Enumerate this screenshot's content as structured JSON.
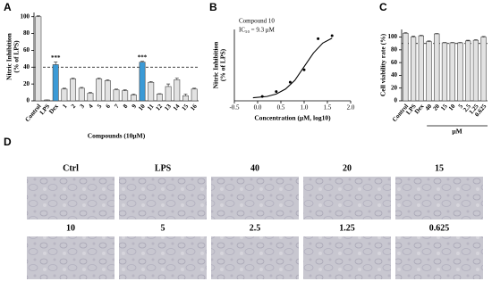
{
  "chart_data": [
    {
      "type": "bar",
      "panel": "A",
      "ylabel": [
        "Nitric Inhibition",
        "(% of LPS)"
      ],
      "xlabel": "Compounds (10μM)",
      "categories": [
        "Control",
        "LPS",
        "Dex",
        "1",
        "2",
        "3",
        "4",
        "5",
        "6",
        "7",
        "8",
        "9",
        "10",
        "11",
        "12",
        "13",
        "14",
        "15",
        "16"
      ],
      "values": [
        100,
        1,
        43,
        14,
        26,
        15,
        9,
        26,
        24,
        13,
        12,
        7,
        46,
        22,
        8,
        17,
        25,
        6,
        14
      ],
      "errors": [
        1,
        0,
        3,
        1,
        1,
        1,
        1,
        1,
        1,
        1,
        1,
        1,
        1,
        1,
        0.5,
        3,
        2,
        2,
        1
      ],
      "color": "#e2e2e2",
      "highlight_color": "#3b9ad6",
      "highlight": [
        "Dex",
        "10"
      ],
      "annotations": [
        {
          "text": "***",
          "category": "Dex"
        },
        {
          "text": "***",
          "category": "10"
        }
      ],
      "reference_line": 40,
      "ylim": [
        0,
        105
      ],
      "yticks": [
        0,
        20,
        40,
        60,
        80,
        100
      ]
    },
    {
      "type": "scatter",
      "panel": "B",
      "ylabel": [
        "Nitric Inhibition",
        "(% of LPS)"
      ],
      "xlabel": "Concentration (μM, log10)",
      "notes": [
        "Compound 10",
        "IC₅₀ = 9.3 μM"
      ],
      "x": [
        0.1,
        0.4,
        0.7,
        1.0,
        1.3,
        1.6
      ],
      "values": [
        2,
        10,
        25,
        45,
        95,
        100
      ],
      "color": "#000000",
      "fit": {
        "x": [
          -0.1,
          0.2,
          0.4,
          0.6,
          0.8,
          1.0,
          1.2,
          1.4,
          1.6
        ],
        "values": [
          0,
          2,
          6,
          14,
          28,
          50,
          72,
          88,
          96
        ]
      },
      "xlim": [
        -0.5,
        2.0
      ],
      "xticks": [
        -0.5,
        {
          "value": 0,
          "label": "0.0"
        },
        0.5,
        {
          "value": 1,
          "label": "1.0"
        },
        1.5,
        {
          "value": 2,
          "label": "2.0"
        }
      ],
      "ylim": [
        -5,
        110
      ]
    },
    {
      "type": "bar",
      "panel": "C",
      "ylabel": "Cell viability rate (%)",
      "categories": [
        "Control",
        "LPS",
        "Dex",
        "40",
        "20",
        "15",
        "10",
        "5",
        "2.5",
        "1.25",
        "0.625"
      ],
      "values": [
        106,
        100,
        102,
        93,
        105,
        91,
        91,
        91,
        94,
        95,
        100
      ],
      "errors": [
        1,
        1.5,
        1,
        1,
        0.5,
        0.5,
        0.5,
        0.5,
        1,
        1,
        1
      ],
      "color": "#e2e2e2",
      "group": {
        "label": "μM",
        "from": "40"
      },
      "reference_line": 90,
      "ylim": [
        0,
        112
      ],
      "yticks": [
        0,
        20,
        40,
        60,
        80,
        100
      ]
    }
  ],
  "micrographs": {
    "panel": "D",
    "labels": [
      "Ctrl",
      "LPS",
      "40",
      "20",
      "15",
      "10",
      "5",
      "2.5",
      "1.25",
      "0.625"
    ]
  }
}
